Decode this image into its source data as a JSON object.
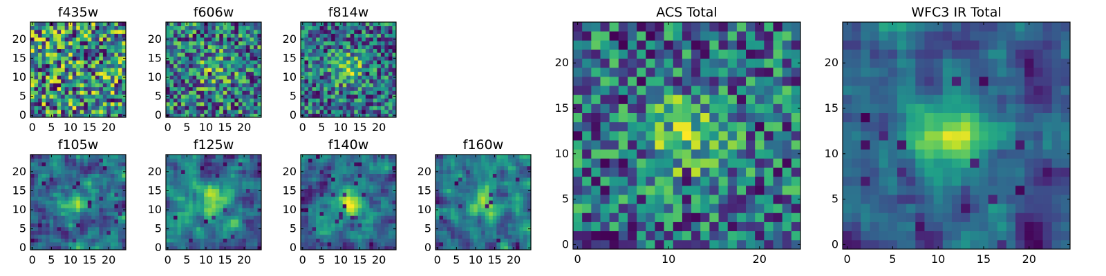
{
  "chart_data": [
    {
      "id": "f435w",
      "type": "heatmap",
      "title": "f435w",
      "x_ticks": [
        0,
        5,
        10,
        15,
        20
      ],
      "y_ticks": [
        0,
        5,
        10,
        15,
        20
      ],
      "xlim": [
        0,
        24
      ],
      "ylim": [
        0,
        24
      ],
      "grid": false,
      "colormap": "viridis",
      "grid_size": [
        25,
        25
      ],
      "values": "seeded random 25x25 pixel intensities, visually uniform noise; no central source"
    },
    {
      "id": "f606w",
      "type": "heatmap",
      "title": "f606w",
      "x_ticks": [
        0,
        5,
        10,
        15,
        20
      ],
      "y_ticks": [
        0,
        5,
        10,
        15,
        20
      ],
      "xlim": [
        0,
        24
      ],
      "ylim": [
        0,
        24
      ],
      "grid": false,
      "colormap": "viridis",
      "grid_size": [
        25,
        25
      ],
      "values": "noise with a faint central source near (12,12)"
    },
    {
      "id": "f814w",
      "type": "heatmap",
      "title": "f814w",
      "x_ticks": [
        0,
        5,
        10,
        15,
        20
      ],
      "y_ticks": [
        0,
        5,
        10,
        15,
        20
      ],
      "xlim": [
        0,
        24
      ],
      "ylim": [
        0,
        24
      ],
      "grid": false,
      "colormap": "viridis",
      "grid_size": [
        25,
        25
      ],
      "values": "noise with a moderate central source near (12,12)"
    },
    {
      "id": "f105w",
      "type": "heatmap",
      "title": "f105w",
      "x_ticks": [
        0,
        5,
        10,
        15,
        20
      ],
      "y_ticks": [
        0,
        5,
        10,
        15,
        20
      ],
      "xlim": [
        0,
        24
      ],
      "ylim": [
        0,
        24
      ],
      "grid": false,
      "colormap": "viridis",
      "grid_size": [
        25,
        25
      ],
      "values": "smoother noise with central source near (12,12)"
    },
    {
      "id": "f125w",
      "type": "heatmap",
      "title": "f125w",
      "x_ticks": [
        0,
        5,
        10,
        15,
        20
      ],
      "y_ticks": [
        0,
        5,
        10,
        15,
        20
      ],
      "xlim": [
        0,
        24
      ],
      "ylim": [
        0,
        24
      ],
      "grid": false,
      "colormap": "viridis",
      "grid_size": [
        25,
        25
      ],
      "values": "smoother noise with central source near (12,12)"
    },
    {
      "id": "f140w",
      "type": "heatmap",
      "title": "f140w",
      "x_ticks": [
        0,
        5,
        10,
        15,
        20
      ],
      "y_ticks": [
        0,
        5,
        10,
        15,
        20
      ],
      "xlim": [
        0,
        24
      ],
      "ylim": [
        0,
        24
      ],
      "grid": false,
      "colormap": "viridis",
      "grid_size": [
        25,
        25
      ],
      "values": "smooth noise with bright central source near (12,12)"
    },
    {
      "id": "f160w",
      "type": "heatmap",
      "title": "f160w",
      "x_ticks": [
        0,
        5,
        10,
        15,
        20
      ],
      "y_ticks": [
        0,
        5,
        10,
        15,
        20
      ],
      "xlim": [
        0,
        24
      ],
      "ylim": [
        0,
        24
      ],
      "grid": false,
      "colormap": "viridis",
      "grid_size": [
        25,
        25
      ],
      "values": "smooth noise with central source near (12,12) and dark spots"
    },
    {
      "id": "acs",
      "type": "heatmap",
      "title": "ACS Total",
      "x_ticks": [
        0,
        10,
        20
      ],
      "y_ticks": [
        0,
        5,
        10,
        15,
        20
      ],
      "xlim": [
        0,
        24
      ],
      "ylim": [
        0,
        24
      ],
      "grid": false,
      "colormap": "viridis",
      "grid_size": [
        25,
        25
      ],
      "values": "coadded ACS image, bright source centered near (12,12)"
    },
    {
      "id": "ir",
      "type": "heatmap",
      "title": "WFC3 IR Total",
      "x_ticks": [
        0,
        5,
        10,
        15,
        20
      ],
      "y_ticks": [
        0,
        5,
        10,
        15,
        20
      ],
      "xlim": [
        0,
        24
      ],
      "ylim": [
        0,
        24
      ],
      "grid": false,
      "colormap": "viridis",
      "grid_size": [
        25,
        25
      ],
      "values": "coadded IR image, bright source centered near (12,13), dark region lower-left of source"
    }
  ],
  "colors": {
    "viridis": [
      "#440154",
      "#482878",
      "#3e4a89",
      "#31688e",
      "#26828e",
      "#1f9e89",
      "#35b779",
      "#6dcd59",
      "#b4de2c",
      "#fde725"
    ]
  }
}
